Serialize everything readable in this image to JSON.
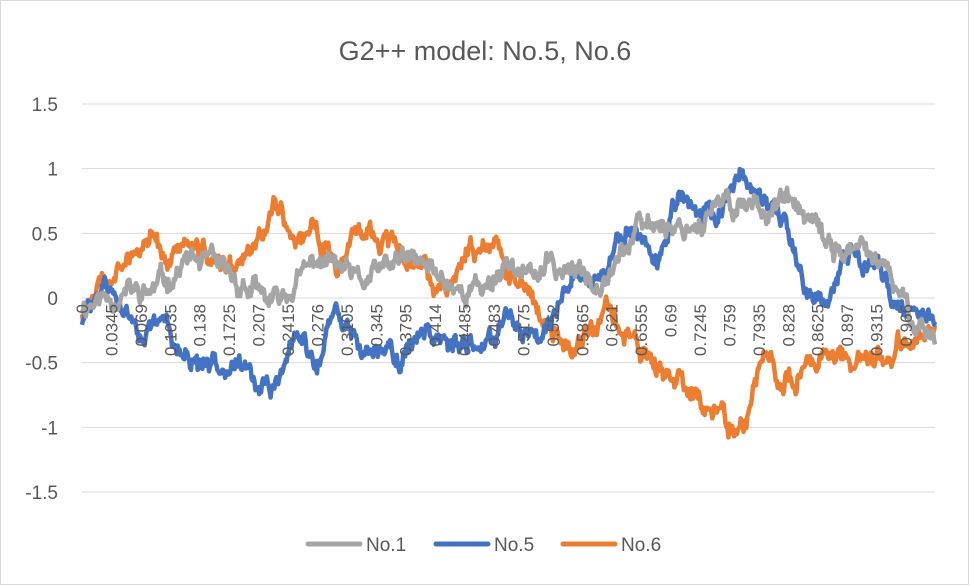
{
  "chart_data": {
    "type": "line",
    "title": "G2++ model: No.5, No.6",
    "xlabel": "",
    "ylabel": "",
    "ylim": [
      -1.5,
      1.5
    ],
    "yticks": [
      "1.5",
      "1",
      "0.5",
      "0",
      "-0.5",
      "-1",
      "-1.5"
    ],
    "ytick_values": [
      1.5,
      1,
      0.5,
      0,
      -0.5,
      -1,
      -1.5
    ],
    "xlim": [
      0,
      1
    ],
    "xticks": [
      "0",
      "0.0345",
      "0.069",
      "0.1035",
      "0.138",
      "0.1725",
      "0.207",
      "0.2415",
      "0.276",
      "0.3105",
      "0.345",
      "0.3795",
      "0.414",
      "0.4485",
      "0.483",
      "0.5175",
      "0.552",
      "0.5865",
      "0.621",
      "0.6555",
      "0.69",
      "0.7245",
      "0.759",
      "0.7935",
      "0.828",
      "0.8625",
      "0.897",
      "0.9315",
      "0.966"
    ],
    "xtick_values": [
      0,
      0.0345,
      0.069,
      0.1035,
      0.138,
      0.1725,
      0.207,
      0.2415,
      0.276,
      0.3105,
      0.345,
      0.3795,
      0.414,
      0.4485,
      0.483,
      0.5175,
      0.552,
      0.5865,
      0.621,
      0.6555,
      0.69,
      0.7245,
      0.759,
      0.7935,
      0.828,
      0.8625,
      0.897,
      0.9315,
      0.966
    ],
    "grid": true,
    "legend_position": "bottom",
    "x": [
      0,
      0.025,
      0.05,
      0.075,
      0.1,
      0.125,
      0.15,
      0.175,
      0.2,
      0.225,
      0.25,
      0.275,
      0.3,
      0.325,
      0.35,
      0.375,
      0.4,
      0.425,
      0.45,
      0.475,
      0.5,
      0.525,
      0.55,
      0.575,
      0.6,
      0.625,
      0.65,
      0.675,
      0.7,
      0.725,
      0.75,
      0.775,
      0.8,
      0.825,
      0.85,
      0.875,
      0.9,
      0.925,
      0.95,
      0.975,
      1
    ],
    "series": [
      {
        "name": "No.1",
        "color": "#a5a5a5",
        "values": [
          -0.05,
          0.0,
          0.05,
          0.02,
          0.15,
          0.3,
          0.25,
          0.15,
          0.05,
          -0.05,
          0.1,
          0.3,
          0.25,
          0.1,
          0.2,
          0.3,
          0.25,
          0.15,
          0.05,
          0.1,
          0.3,
          0.15,
          0.25,
          0.2,
          0.15,
          0.3,
          0.5,
          0.6,
          0.55,
          0.6,
          0.7,
          0.75,
          0.7,
          0.75,
          0.6,
          0.4,
          0.35,
          0.35,
          0.1,
          -0.15,
          -0.3
        ]
      },
      {
        "name": "No.5",
        "color": "#4472c4",
        "values": [
          -0.2,
          0.1,
          -0.1,
          -0.3,
          -0.2,
          -0.5,
          -0.6,
          -0.4,
          -0.65,
          -0.75,
          -0.3,
          -0.5,
          -0.1,
          -0.4,
          -0.35,
          -0.5,
          -0.2,
          -0.3,
          -0.45,
          -0.3,
          -0.1,
          -0.3,
          -0.15,
          0.3,
          0.1,
          0.4,
          0.5,
          0.3,
          0.8,
          0.6,
          0.7,
          1.0,
          0.7,
          0.5,
          0.1,
          0.0,
          0.4,
          0.3,
          0.0,
          -0.1,
          -0.2
        ]
      },
      {
        "name": "No.6",
        "color": "#ed7d31",
        "values": [
          -0.1,
          0.1,
          0.2,
          0.55,
          0.3,
          0.4,
          0.25,
          0.2,
          0.35,
          0.75,
          0.45,
          0.55,
          0.25,
          0.45,
          0.5,
          0.4,
          0.2,
          0.1,
          0.3,
          0.5,
          0.2,
          0.0,
          -0.2,
          -0.35,
          -0.2,
          -0.1,
          -0.4,
          -0.55,
          -0.7,
          -0.8,
          -0.9,
          -1.05,
          -0.5,
          -0.6,
          -0.5,
          -0.4,
          -0.45,
          -0.5,
          -0.4,
          -0.3,
          -0.25
        ]
      }
    ]
  }
}
